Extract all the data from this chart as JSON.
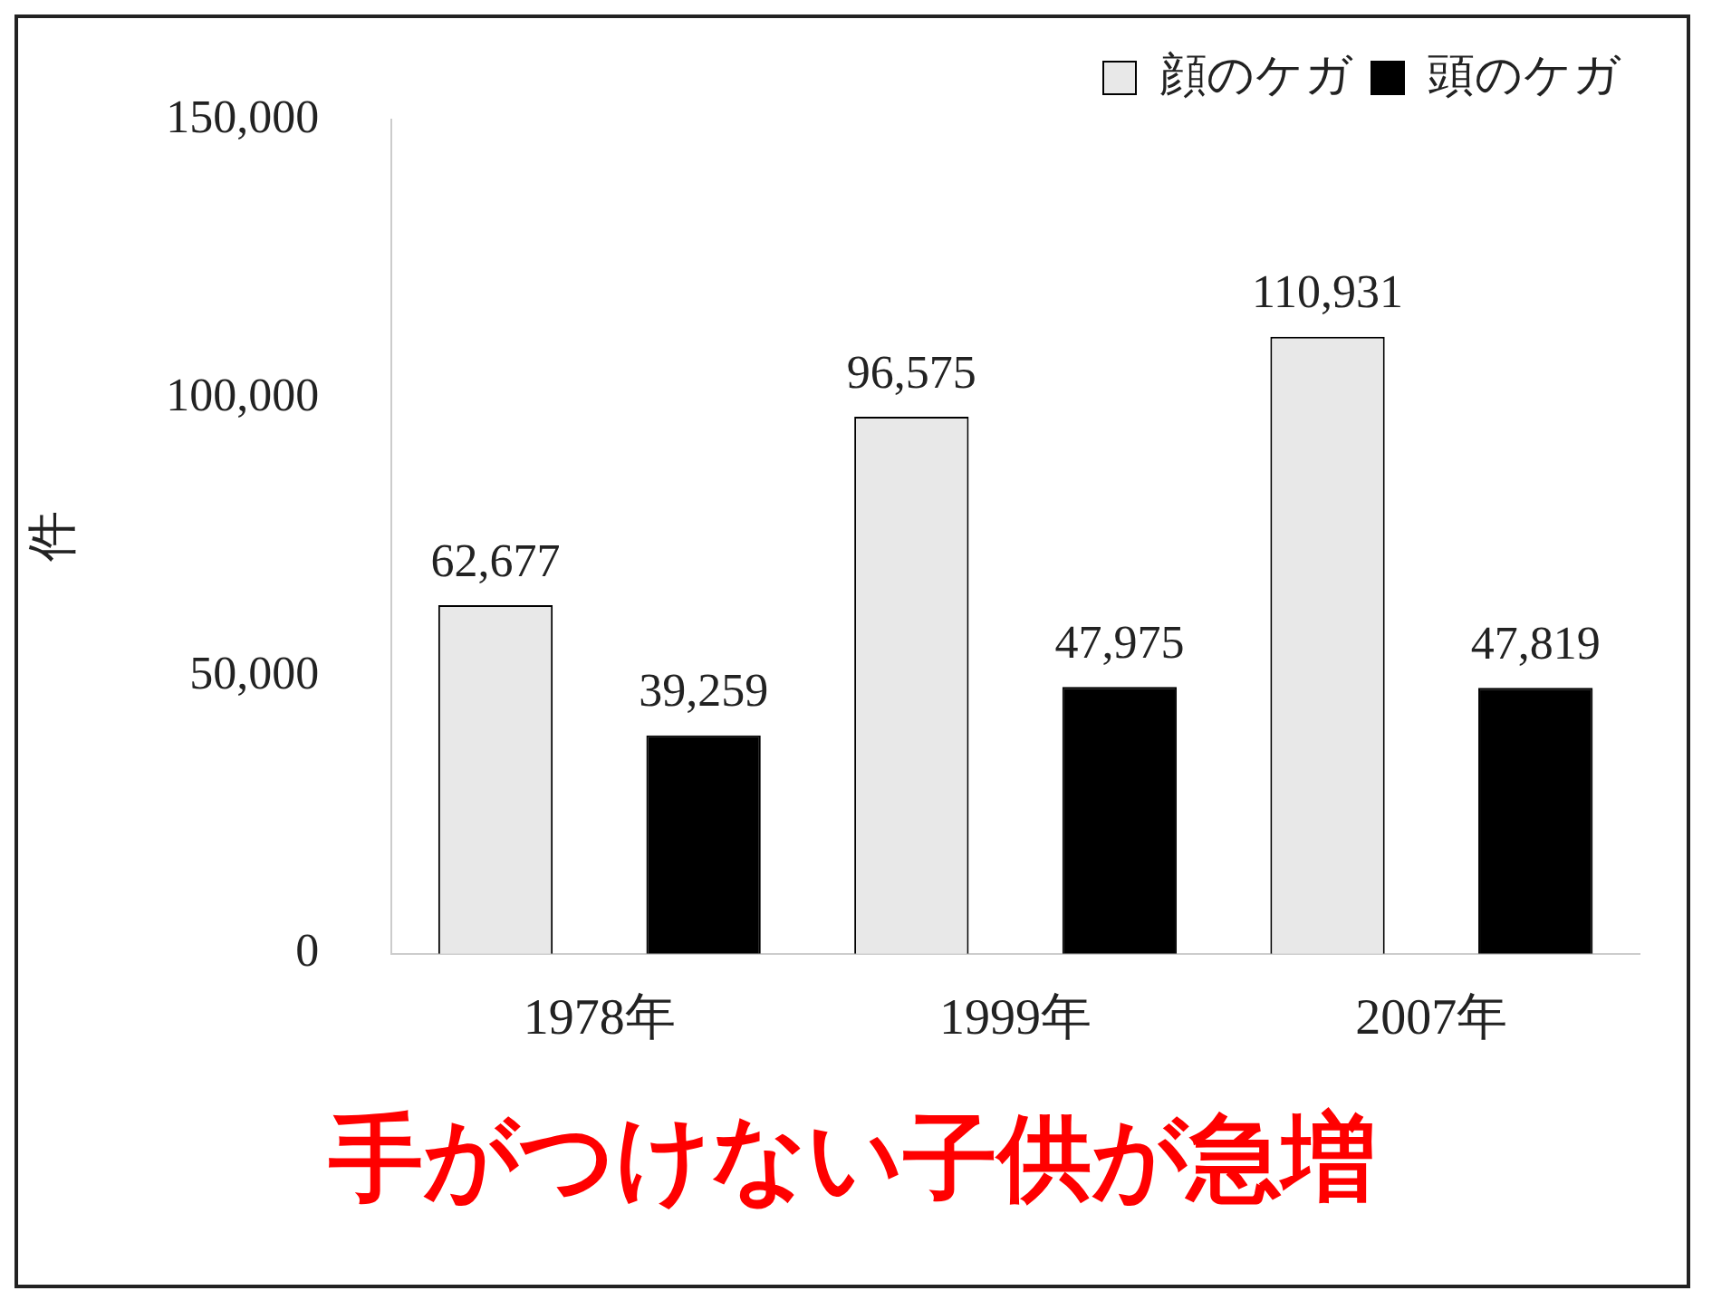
{
  "chart_data": {
    "type": "bar",
    "ylabel": "件",
    "categories": [
      "1978年",
      "1999年",
      "2007年"
    ],
    "series": [
      {
        "name": "顔のケガ",
        "color": "#e8e8e8",
        "values": [
          62677,
          96575,
          110931
        ],
        "value_labels": [
          "62,677",
          "96,575",
          "110,931"
        ]
      },
      {
        "name": "頭のケガ",
        "color": "#000000",
        "values": [
          39259,
          47975,
          47819
        ],
        "value_labels": [
          "39,259",
          "47,975",
          "47,819"
        ]
      }
    ],
    "ylim": [
      0,
      150000
    ],
    "yticks": [
      {
        "value": 0,
        "label": "0"
      },
      {
        "value": 50000,
        "label": "50,000"
      },
      {
        "value": 100000,
        "label": "100,000"
      },
      {
        "value": 150000,
        "label": "150,000"
      }
    ],
    "grid": false,
    "legend": "top right",
    "annotations": [
      "手がつけない子供が急増"
    ]
  }
}
